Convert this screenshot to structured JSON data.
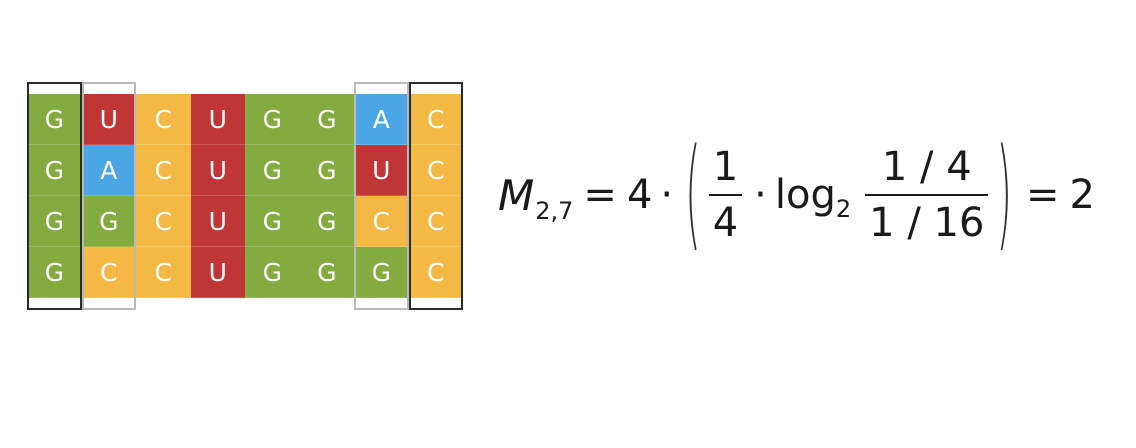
{
  "colors": {
    "G": "#7aa430",
    "U": "#bb2626",
    "C": "#f4b436",
    "A": "#3d9ee2",
    "frame_dark": "#2b2b2b",
    "frame_light": "#b9b9b9"
  },
  "alignment": {
    "rows": [
      [
        "G",
        "U",
        "C",
        "U",
        "G",
        "G",
        "A",
        "C"
      ],
      [
        "G",
        "A",
        "C",
        "U",
        "G",
        "G",
        "U",
        "C"
      ],
      [
        "G",
        "G",
        "C",
        "U",
        "G",
        "G",
        "C",
        "C"
      ],
      [
        "G",
        "C",
        "C",
        "U",
        "G",
        "G",
        "G",
        "C"
      ]
    ],
    "highlighted_columns": [
      {
        "column": 1,
        "style": "dark"
      },
      {
        "column": 2,
        "style": "light"
      },
      {
        "column": 7,
        "style": "light"
      },
      {
        "column": 8,
        "style": "dark"
      }
    ]
  },
  "formula": {
    "symbol": "M",
    "subscript": "2,7",
    "equals": "=",
    "coefficient": "4",
    "dot": "·",
    "open_paren": "(",
    "close_paren": ")",
    "frac1_num": "1",
    "frac1_den": "4",
    "log": "log",
    "log_base": "2",
    "frac2_num": "1 / 4",
    "frac2_den": "1 / 16",
    "result": "2"
  }
}
